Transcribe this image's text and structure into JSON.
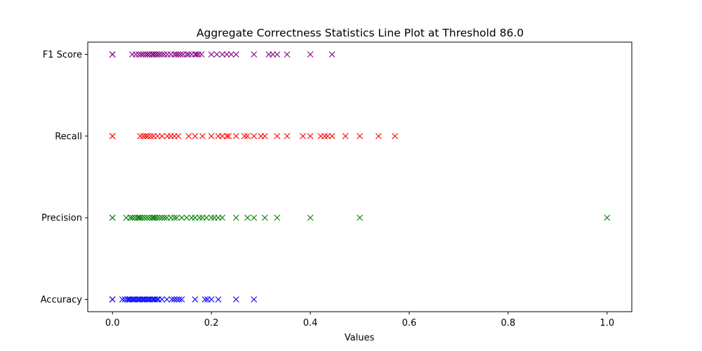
{
  "chart_data": {
    "type": "scatter",
    "title": "Aggregate Correctness Statistics Line Plot at Threshold 86.0",
    "xlabel": "Values",
    "ylabel": "",
    "xlim": [
      -0.05,
      1.05
    ],
    "xticks": [
      0.0,
      0.2,
      0.4,
      0.6,
      0.8,
      1.0
    ],
    "xtick_labels": [
      "0.0",
      "0.2",
      "0.4",
      "0.6",
      "0.8",
      "1.0"
    ],
    "categories": [
      "Accuracy",
      "Precision",
      "Recall",
      "F1 Score"
    ],
    "marker": "x",
    "grid": false,
    "legend": "none",
    "series": [
      {
        "category": "Accuracy",
        "color": "#0000ff",
        "values": [
          0.0,
          0.0,
          0.02,
          0.025,
          0.03,
          0.033,
          0.036,
          0.04,
          0.043,
          0.046,
          0.05,
          0.053,
          0.056,
          0.06,
          0.063,
          0.066,
          0.07,
          0.073,
          0.076,
          0.08,
          0.083,
          0.086,
          0.09,
          0.093,
          0.1,
          0.11,
          0.12,
          0.125,
          0.13,
          0.135,
          0.14,
          0.167,
          0.187,
          0.192,
          0.2,
          0.214,
          0.25,
          0.286
        ]
      },
      {
        "category": "Precision",
        "color": "#008000",
        "values": [
          0.0,
          0.0,
          0.028,
          0.036,
          0.04,
          0.045,
          0.05,
          0.053,
          0.056,
          0.06,
          0.065,
          0.07,
          0.075,
          0.08,
          0.083,
          0.086,
          0.09,
          0.095,
          0.1,
          0.105,
          0.11,
          0.118,
          0.125,
          0.13,
          0.14,
          0.15,
          0.16,
          0.167,
          0.176,
          0.182,
          0.19,
          0.2,
          0.206,
          0.214,
          0.222,
          0.25,
          0.273,
          0.286,
          0.308,
          0.333,
          0.4,
          0.5,
          1.0
        ]
      },
      {
        "category": "Recall",
        "color": "#ff0000",
        "values": [
          0.0,
          0.0,
          0.056,
          0.062,
          0.067,
          0.071,
          0.077,
          0.083,
          0.091,
          0.1,
          0.111,
          0.118,
          0.125,
          0.133,
          0.154,
          0.167,
          0.182,
          0.2,
          0.214,
          0.222,
          0.231,
          0.235,
          0.25,
          0.267,
          0.273,
          0.286,
          0.3,
          0.308,
          0.333,
          0.353,
          0.385,
          0.4,
          0.421,
          0.429,
          0.435,
          0.444,
          0.471,
          0.5,
          0.538,
          0.571
        ]
      },
      {
        "category": "F1 Score",
        "color": "#800080",
        "values": [
          0.0,
          0.0,
          0.04,
          0.047,
          0.053,
          0.058,
          0.062,
          0.067,
          0.071,
          0.075,
          0.08,
          0.083,
          0.087,
          0.091,
          0.095,
          0.1,
          0.105,
          0.111,
          0.118,
          0.125,
          0.129,
          0.133,
          0.138,
          0.143,
          0.15,
          0.154,
          0.16,
          0.167,
          0.17,
          0.174,
          0.18,
          0.2,
          0.211,
          0.222,
          0.231,
          0.24,
          0.25,
          0.286,
          0.316,
          0.324,
          0.333,
          0.353,
          0.4,
          0.444
        ]
      }
    ]
  }
}
